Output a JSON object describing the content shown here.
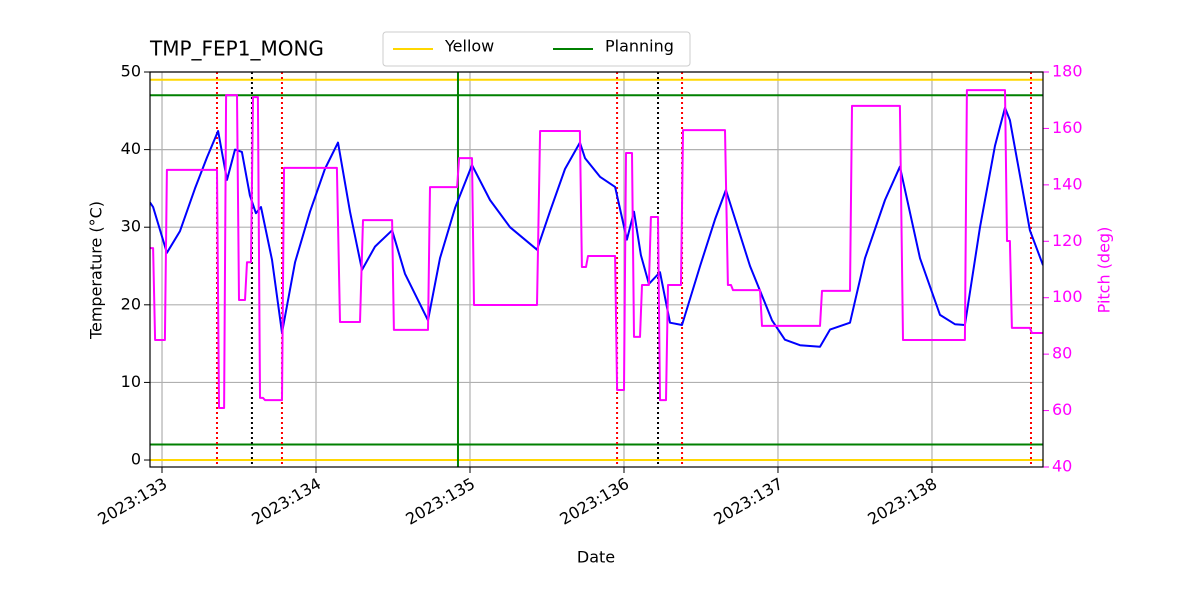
{
  "chart_data": {
    "type": "line",
    "title": "TMP_FEP1_MONG",
    "x_label": "Date",
    "y_label": "Temperature (°C)",
    "y2_label": "Pitch (deg)",
    "y2_label_color": "#ff00ff",
    "grid": true,
    "legend": "top",
    "xlim": [
      132.922,
      138.721
    ],
    "xticks": [
      {
        "value": 133,
        "label": "2023:133"
      },
      {
        "value": 134,
        "label": "2023:134"
      },
      {
        "value": 135,
        "label": "2023:135"
      },
      {
        "value": 136,
        "label": "2023:136"
      },
      {
        "value": 137,
        "label": "2023:137"
      },
      {
        "value": 138,
        "label": "2023:138"
      }
    ],
    "ylim": [
      -0.9,
      50
    ],
    "yticks": [
      0,
      10,
      20,
      30,
      40,
      50
    ],
    "y2lim": [
      40,
      180
    ],
    "y2ticks": [
      40,
      60,
      80,
      100,
      120,
      140,
      160,
      180
    ],
    "limits": [
      {
        "name": "Yellow",
        "color": "#ffd700",
        "values": [
          0,
          49
        ]
      },
      {
        "name": "Planning",
        "color": "#008000",
        "values": [
          2,
          47
        ]
      }
    ],
    "vlines": [
      {
        "color": "#ff0000",
        "style": "dotted",
        "x": [
          133.357,
          133.779,
          135.955,
          136.377,
          138.643
        ]
      },
      {
        "color": "#000000",
        "style": "dotted",
        "x": [
          133.584,
          136.221
        ]
      },
      {
        "color": "#008000",
        "style": "solid",
        "x": [
          134.922
        ]
      }
    ],
    "series": [
      {
        "color": "#0000ff",
        "axis": "y",
        "x": [
          132.922,
          132.942,
          133.032,
          133.117,
          133.214,
          133.292,
          133.364,
          133.422,
          133.474,
          133.519,
          133.571,
          133.61,
          133.643,
          133.714,
          133.779,
          133.864,
          133.961,
          134.058,
          134.143,
          134.221,
          134.299,
          134.383,
          134.494,
          134.578,
          134.727,
          134.805,
          134.903,
          135.013,
          135.13,
          135.26,
          135.435,
          135.519,
          135.617,
          135.714,
          135.747,
          135.844,
          135.942,
          136.019,
          136.065,
          136.11,
          136.162,
          136.234,
          136.299,
          136.377,
          136.494,
          136.591,
          136.662,
          136.818,
          136.961,
          137.045,
          137.143,
          137.273,
          137.338,
          137.468,
          137.565,
          137.695,
          137.792,
          137.922,
          138.052,
          138.149,
          138.214,
          138.312,
          138.409,
          138.474,
          138.506,
          138.636,
          138.721
        ],
        "values": [
          33.2,
          32.6,
          26.7,
          29.5,
          35.0,
          39.0,
          42.4,
          36.1,
          40.0,
          39.7,
          34.1,
          31.8,
          32.6,
          25.8,
          16.4,
          25.5,
          32.0,
          37.5,
          40.9,
          32.0,
          24.5,
          27.5,
          29.6,
          24.0,
          18.0,
          26.0,
          32.5,
          38.0,
          33.5,
          30.0,
          27.1,
          32.0,
          37.5,
          40.9,
          38.9,
          36.5,
          35.2,
          28.4,
          32.0,
          26.4,
          22.7,
          24.2,
          17.7,
          17.4,
          25.0,
          31.0,
          34.8,
          25.0,
          18.0,
          15.5,
          14.8,
          14.6,
          16.8,
          17.7,
          26.0,
          33.5,
          37.8,
          26.0,
          18.7,
          17.5,
          17.4,
          30.0,
          40.5,
          45.4,
          43.8,
          29.6,
          25.1
        ]
      },
      {
        "color": "#ff00ff",
        "axis": "y2",
        "x": [
          132.922,
          132.942,
          132.955,
          133.019,
          133.032,
          133.357,
          133.37,
          133.403,
          133.416,
          133.487,
          133.5,
          133.539,
          133.552,
          133.578,
          133.591,
          133.623,
          133.636,
          133.656,
          133.669,
          133.779,
          133.792,
          134.136,
          134.156,
          134.286,
          134.305,
          134.494,
          134.506,
          134.727,
          134.74,
          134.916,
          134.929,
          135.013,
          135.026,
          135.435,
          135.455,
          135.714,
          135.727,
          135.753,
          135.766,
          135.942,
          135.955,
          136.0,
          136.013,
          136.052,
          136.065,
          136.104,
          136.117,
          136.162,
          136.175,
          136.221,
          136.234,
          136.273,
          136.286,
          136.37,
          136.383,
          136.656,
          136.675,
          136.695,
          136.708,
          136.883,
          136.896,
          137.273,
          137.286,
          137.468,
          137.481,
          137.792,
          137.812,
          138.214,
          138.227,
          138.474,
          138.487,
          138.506,
          138.519,
          138.636,
          138.649,
          138.721
        ],
        "values": [
          117.6,
          117.6,
          85,
          85,
          145.3,
          145.3,
          60.9,
          60.9,
          171.8,
          171.8,
          99.2,
          99.2,
          112.6,
          112.6,
          171.1,
          171.1,
          64.5,
          64.5,
          63.7,
          63.7,
          146,
          146,
          91.4,
          91.4,
          127.5,
          127.5,
          88.6,
          88.6,
          139.2,
          139.2,
          149.5,
          149.5,
          97.4,
          97.4,
          159.1,
          159.1,
          110.9,
          110.9,
          114.8,
          114.8,
          67.3,
          67.3,
          151.3,
          151.3,
          86.1,
          86.1,
          104.5,
          104.5,
          128.6,
          128.6,
          63.7,
          63.7,
          104.5,
          104.5,
          159.4,
          159.4,
          104.5,
          104.5,
          102.7,
          102.7,
          90,
          90,
          102.4,
          102.4,
          168,
          168,
          85,
          85,
          173.6,
          173.6,
          120.1,
          120.1,
          89.3,
          89.3,
          87.5,
          87.5
        ]
      }
    ]
  }
}
